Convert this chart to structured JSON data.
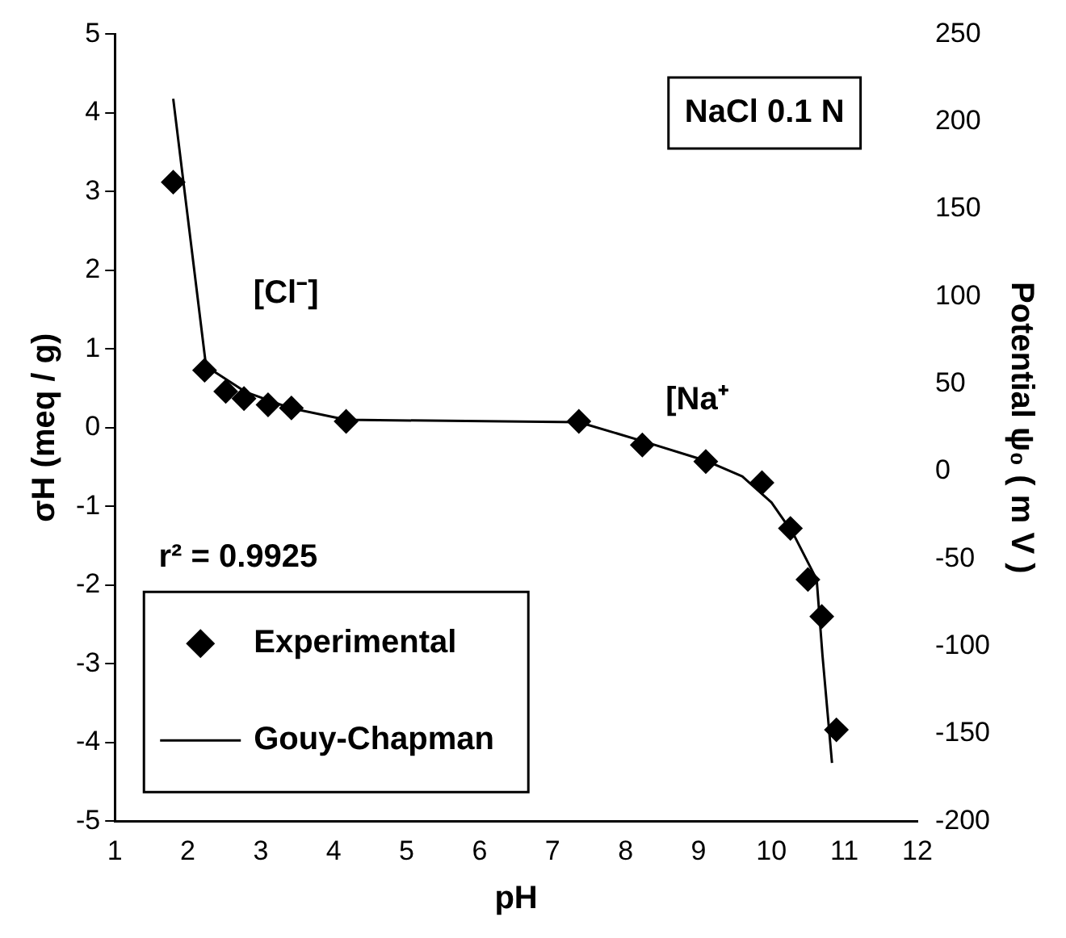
{
  "chart_data": {
    "type": "scatter",
    "xlabel": "pH",
    "ylabel": "σH (meq / g)",
    "y2label": "Potential ψ₀ ( m V )",
    "annotations": [
      "NaCl 0.1 N",
      "[Cl⁻]",
      "[Na⁺",
      "r² = 0.9925"
    ],
    "xlim": [
      1,
      12
    ],
    "xticks": [
      1,
      2,
      3,
      4,
      5,
      6,
      7,
      8,
      9,
      10,
      11,
      12
    ],
    "ylim": [
      -5,
      5
    ],
    "yticks": [
      -5,
      -4,
      -3,
      -2,
      -1,
      0,
      1,
      2,
      3,
      4,
      5
    ],
    "y2lim": [
      -200,
      250
    ],
    "y2ticks": [
      -200,
      -150,
      -100,
      -50,
      0,
      50,
      100,
      150,
      200,
      250
    ],
    "grid": false,
    "legend": "bottom left",
    "series": [
      {
        "name": "Experimental",
        "type": "scatter",
        "marker": "diamond",
        "color": "#000000",
        "x": [
          1.8,
          2.23,
          2.52,
          2.77,
          3.1,
          3.42,
          4.17,
          7.36,
          8.23,
          9.1,
          9.87,
          10.26,
          10.5,
          10.69,
          10.89
        ],
        "values": [
          3.12,
          0.73,
          0.46,
          0.37,
          0.29,
          0.25,
          0.08,
          0.08,
          -0.22,
          -0.43,
          -0.7,
          -1.28,
          -1.93,
          -2.4,
          -3.84
        ]
      },
      {
        "name": "Gouy-Chapman",
        "type": "line",
        "marker": "none",
        "line_style": "solid",
        "color": "#000000",
        "x": [
          1.8,
          2.25,
          2.8,
          3.4,
          4.17,
          7.36,
          8.23,
          9.1,
          9.6,
          10.0,
          10.3,
          10.62,
          10.7,
          10.83
        ],
        "values": [
          4.18,
          0.78,
          0.45,
          0.25,
          0.1,
          0.07,
          -0.17,
          -0.42,
          -0.62,
          -0.95,
          -1.35,
          -1.93,
          -2.9,
          -4.26
        ]
      }
    ]
  }
}
